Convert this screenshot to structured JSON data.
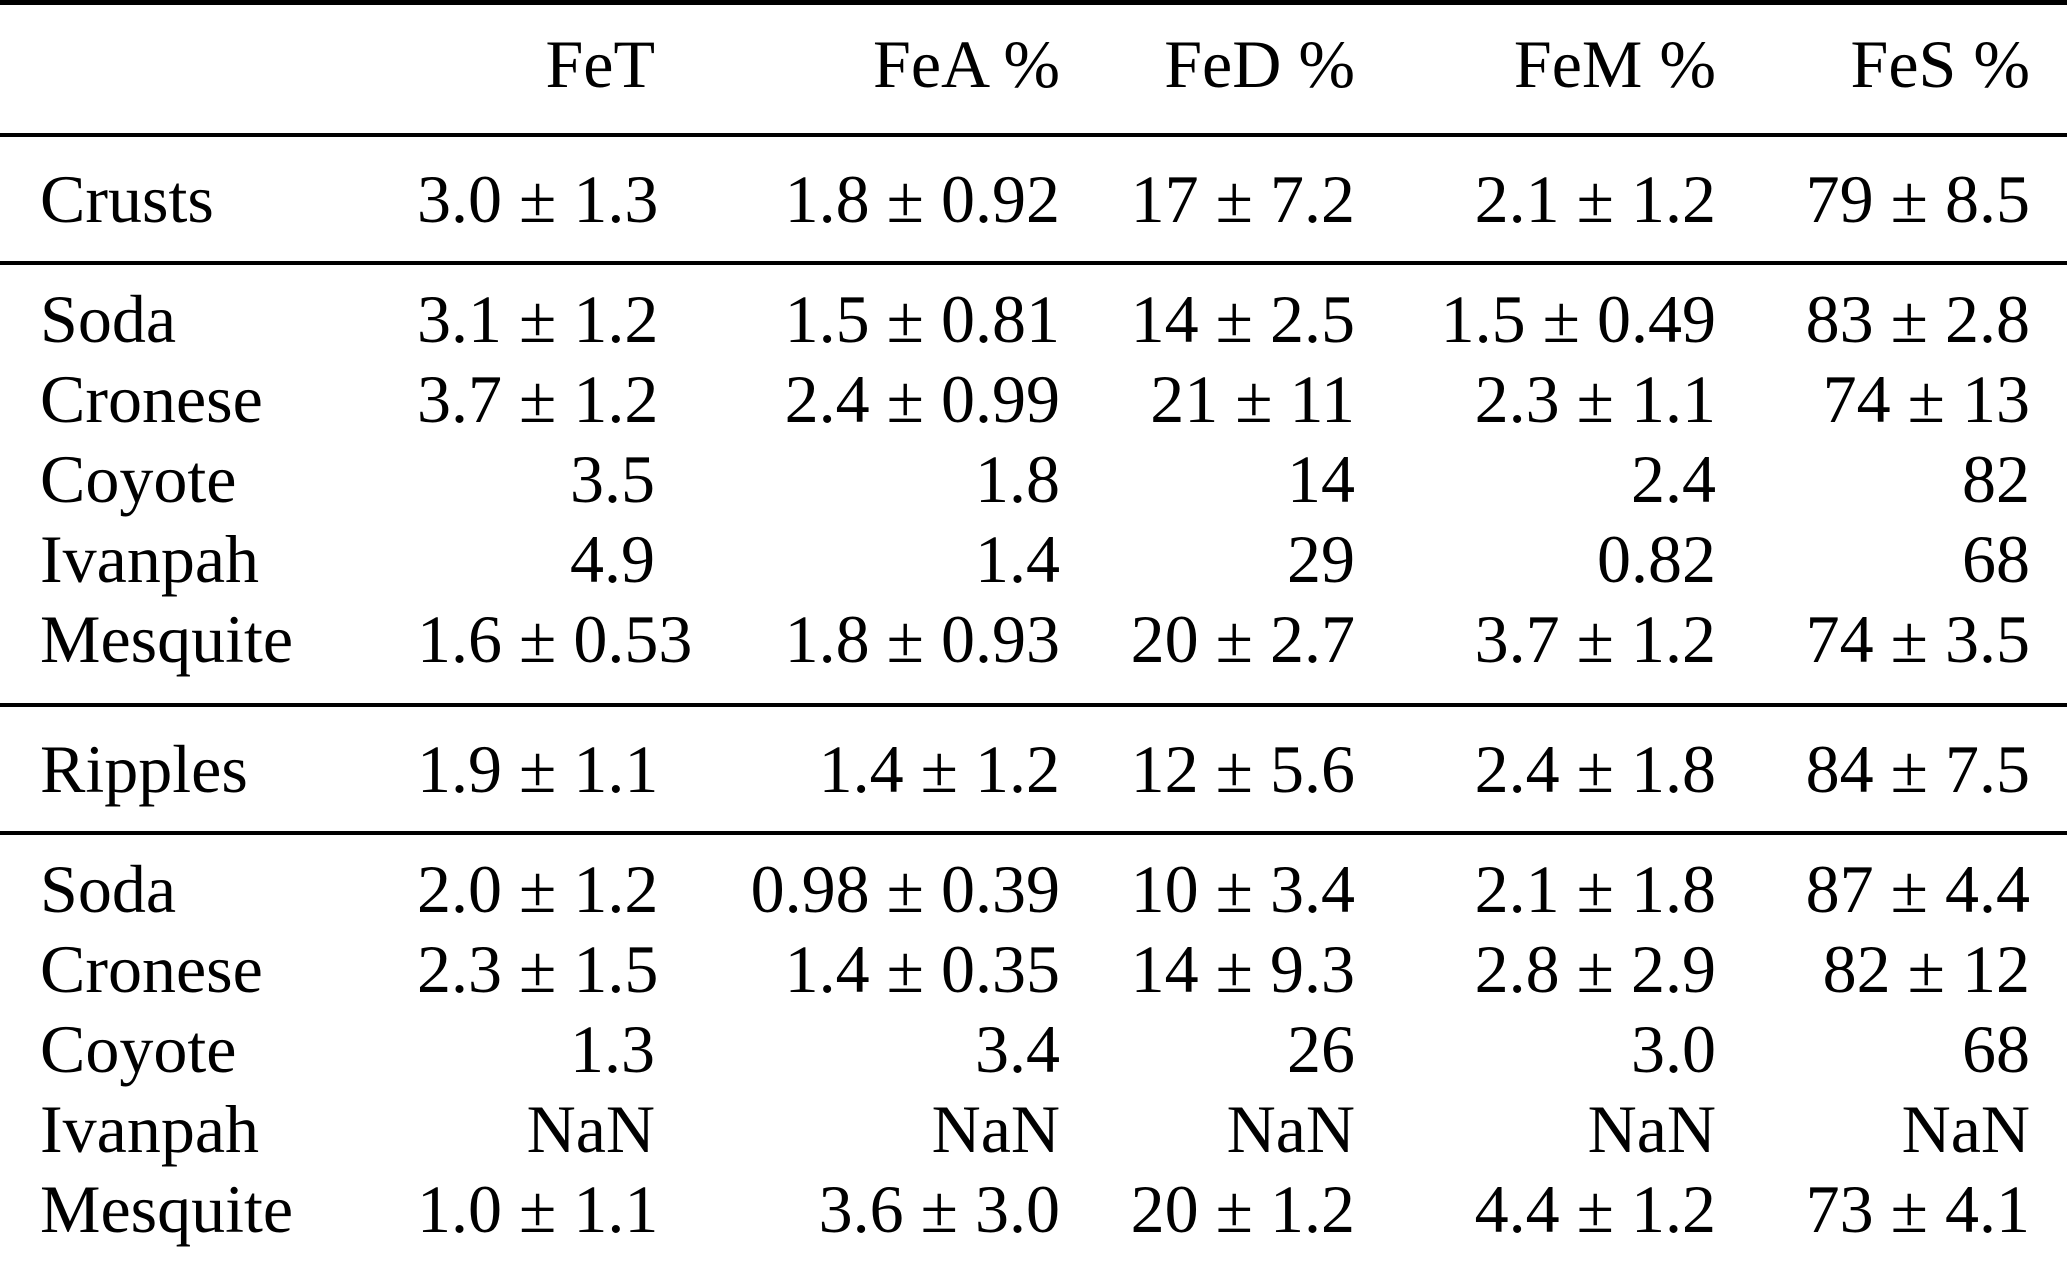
{
  "table": {
    "columns": [
      "",
      "FeT",
      "FeA %",
      "FeD %",
      "FeM %",
      "FeS %"
    ],
    "sections": [
      {
        "name": "crusts-summary",
        "rows": [
          {
            "label": "Crusts",
            "values": [
              "3.0 ± 1.3",
              "1.8 ± 0.92",
              "17 ± 7.2",
              "2.1 ± 1.2",
              "79 ± 8.5"
            ]
          }
        ]
      },
      {
        "name": "crusts-sites",
        "rows": [
          {
            "label": "Soda",
            "values": [
              "3.1 ± 1.2",
              "1.5 ± 0.81",
              "14 ± 2.5",
              "1.5 ± 0.49",
              "83 ± 2.8"
            ]
          },
          {
            "label": "Cronese",
            "values": [
              "3.7 ± 1.2",
              "2.4 ± 0.99",
              "21 ± 11",
              "2.3 ± 1.1",
              "74 ± 13"
            ]
          },
          {
            "label": "Coyote",
            "values": [
              "3.5",
              "1.8",
              "14",
              "2.4",
              "82"
            ]
          },
          {
            "label": "Ivanpah",
            "values": [
              "4.9",
              "1.4",
              "29",
              "0.82",
              "68"
            ]
          },
          {
            "label": "Mesquite",
            "values": [
              "1.6 ± 0.53",
              "1.8 ± 0.93",
              "20 ± 2.7",
              "3.7 ± 1.2",
              "74 ± 3.5"
            ]
          }
        ]
      },
      {
        "name": "ripples-summary",
        "rows": [
          {
            "label": "Ripples",
            "values": [
              "1.9 ± 1.1",
              "1.4 ± 1.2",
              "12 ± 5.6",
              "2.4 ± 1.8",
              "84 ± 7.5"
            ]
          }
        ]
      },
      {
        "name": "ripples-sites",
        "rows": [
          {
            "label": "Soda",
            "values": [
              "2.0 ± 1.2",
              "0.98 ± 0.39",
              "10 ± 3.4",
              "2.1 ± 1.8",
              "87 ± 4.4"
            ]
          },
          {
            "label": "Cronese",
            "values": [
              "2.3 ± 1.5",
              "1.4 ± 0.35",
              "14 ± 9.3",
              "2.8 ± 2.9",
              "82 ± 12"
            ]
          },
          {
            "label": "Coyote",
            "values": [
              "1.3",
              "3.4",
              "26",
              "3.0",
              "68"
            ]
          },
          {
            "label": "Ivanpah",
            "values": [
              "NaN",
              "NaN",
              "NaN",
              "NaN",
              "NaN"
            ]
          },
          {
            "label": "Mesquite",
            "values": [
              "1.0 ± 1.1",
              "3.6 ± 3.0",
              "20 ± 1.2",
              "4.4 ± 1.2",
              "73 ± 4.1"
            ]
          }
        ]
      }
    ]
  }
}
